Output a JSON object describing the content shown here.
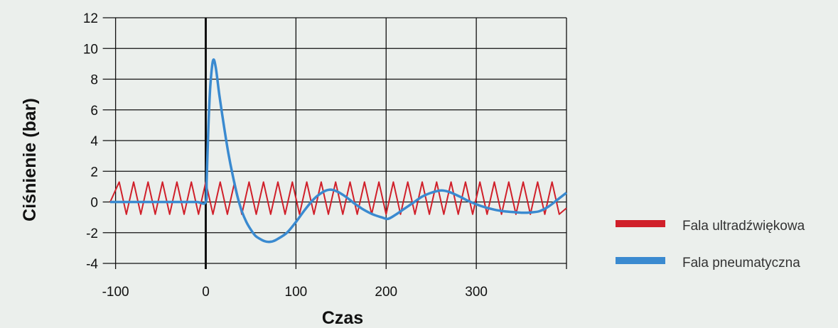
{
  "chart_data": {
    "type": "line",
    "xlabel": "Czas",
    "ylabel": "Ciśnienie (bar)",
    "xlim": [
      -106,
      400
    ],
    "ylim": [
      -4,
      12
    ],
    "xticks": [
      -100,
      0,
      100,
      200,
      300
    ],
    "yticks": [
      -4,
      -2,
      0,
      2,
      4,
      6,
      8,
      10,
      12
    ],
    "grid": true,
    "legend_position": "bottom-right",
    "series": [
      {
        "name": "Fala ultradźwiękowa",
        "color": "#d0202a",
        "x": [
          -106,
          -96,
          -88,
          -80,
          -72,
          -64,
          -56,
          -48,
          -40,
          -32,
          -24,
          -16,
          -8,
          0,
          8,
          16,
          24,
          32,
          40,
          48,
          56,
          64,
          72,
          80,
          88,
          96,
          104,
          112,
          120,
          128,
          136,
          144,
          152,
          160,
          168,
          176,
          184,
          192,
          200,
          208,
          216,
          224,
          232,
          240,
          248,
          256,
          264,
          272,
          280,
          288,
          296,
          304,
          312,
          320,
          328,
          336,
          344,
          352,
          360,
          368,
          376,
          384,
          392,
          400
        ],
        "y": [
          0,
          1.3,
          -0.8,
          1.3,
          -0.8,
          1.3,
          -0.8,
          1.3,
          -0.8,
          1.3,
          -0.8,
          1.3,
          -0.8,
          1.3,
          -0.8,
          1.3,
          -0.8,
          1.3,
          -0.8,
          1.3,
          -0.8,
          1.3,
          -0.8,
          1.3,
          -0.8,
          1.3,
          -0.8,
          1.3,
          -0.8,
          1.3,
          -0.8,
          1.3,
          -0.8,
          1.3,
          -0.8,
          1.3,
          -0.8,
          1.3,
          -0.8,
          1.3,
          -0.8,
          1.3,
          -0.8,
          1.3,
          -0.8,
          1.3,
          -0.8,
          1.3,
          -0.8,
          1.3,
          -0.8,
          1.3,
          -0.8,
          1.3,
          -0.8,
          1.3,
          -0.8,
          1.3,
          -0.8,
          1.3,
          -0.8,
          1.3,
          -0.8,
          -0.4
        ]
      },
      {
        "name": "Fala pneumatyczna",
        "color": "#3a8ad0",
        "x": [
          -106,
          -90,
          -70,
          -50,
          -30,
          -10,
          0,
          1,
          3,
          5,
          8,
          11,
          15,
          20,
          25,
          30,
          35,
          40,
          45,
          50,
          55,
          60,
          65,
          70,
          75,
          80,
          90,
          100,
          110,
          120,
          130,
          137,
          145,
          155,
          165,
          175,
          185,
          195,
          202,
          210,
          220,
          230,
          240,
          250,
          261,
          270,
          280,
          290,
          300,
          310,
          320,
          330,
          340,
          350,
          360,
          370,
          380,
          390,
          400
        ],
        "y": [
          0,
          0,
          0,
          0,
          0,
          0,
          0,
          1.5,
          5,
          7.5,
          9.2,
          8.8,
          7,
          5,
          3.2,
          1.7,
          0.4,
          -0.6,
          -1.3,
          -1.8,
          -2.2,
          -2.4,
          -2.55,
          -2.6,
          -2.55,
          -2.4,
          -2,
          -1.3,
          -0.5,
          0.2,
          0.65,
          0.8,
          0.7,
          0.35,
          -0.1,
          -0.5,
          -0.8,
          -1.0,
          -1.1,
          -0.85,
          -0.45,
          -0.05,
          0.35,
          0.6,
          0.75,
          0.65,
          0.4,
          0.1,
          -0.15,
          -0.35,
          -0.5,
          -0.6,
          -0.65,
          -0.7,
          -0.68,
          -0.6,
          -0.3,
          0.15,
          0.6
        ]
      }
    ]
  }
}
